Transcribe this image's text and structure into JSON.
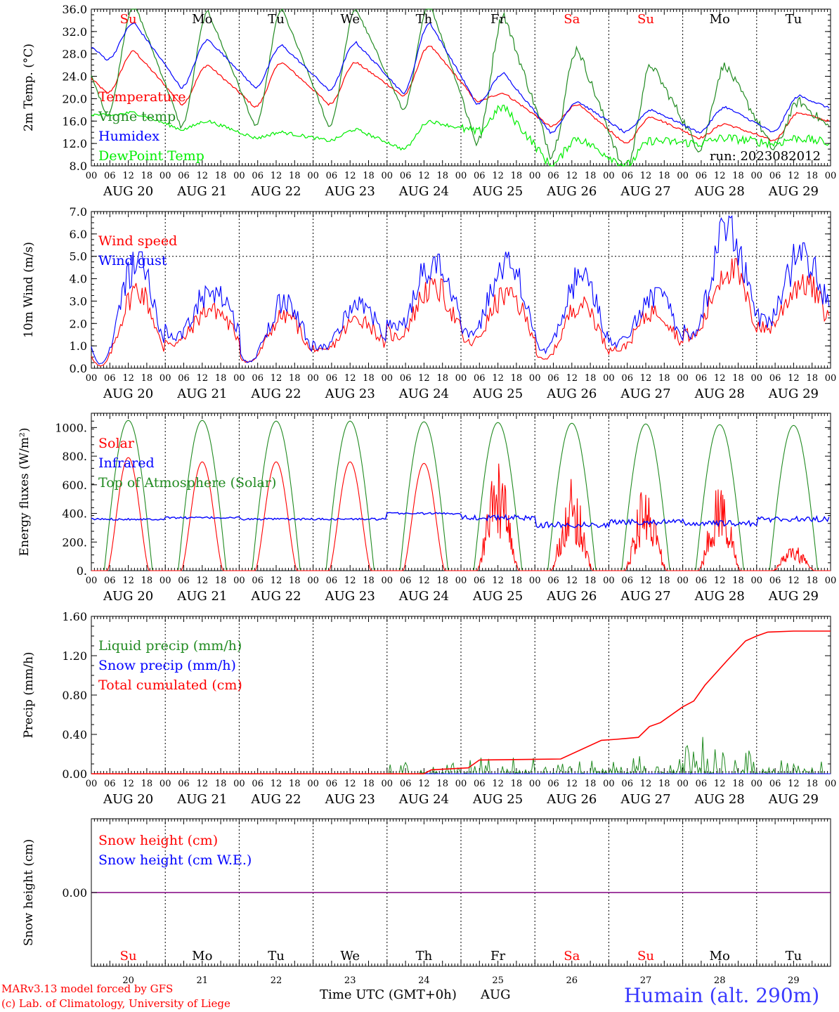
{
  "footer": {
    "model_line1": "MARv3.13 model forced by GFS",
    "model_line2": "(c) Lab. of Climatology, University of Liege",
    "xaxis_title": "Time UTC (GMT+0h)",
    "month": "AUG",
    "station": "Humain (alt. 290m)"
  },
  "colors": {
    "red": "#ff0000",
    "green": "#228b22",
    "blue": "#0000ff",
    "lightgreen": "#00ee00",
    "purple": "#800080"
  },
  "chart_data": [
    {
      "type": "line",
      "ylabel": "2m Temp. (°C)",
      "ylim": [
        8,
        36
      ],
      "yticks": [
        "8.0",
        "12.0",
        "16.0",
        "20.0",
        "24.0",
        "28.0",
        "32.0",
        "36.0"
      ],
      "x_hour_ticks": [
        "00",
        "06",
        "12",
        "18"
      ],
      "dates": [
        "AUG 20",
        "AUG 21",
        "AUG 22",
        "AUG 23",
        "AUG 24",
        "AUG 25",
        "AUG 26",
        "AUG 27",
        "AUG 28",
        "AUG 29"
      ],
      "weekdays": [
        "Su",
        "Mo",
        "Tu",
        "We",
        "Th",
        "Fr",
        "Sa",
        "Su",
        "Mo",
        "Tu"
      ],
      "weekend_flags": [
        true,
        false,
        false,
        false,
        false,
        false,
        true,
        true,
        false,
        false
      ],
      "annotation": "run: 2023082012",
      "legend": [
        "Temperature",
        "Vigne temp",
        "Humidex",
        "DewPoint Temp"
      ],
      "series": [
        {
          "name": "Temperature",
          "color": "#ff0000",
          "daily_min": [
            21,
            19,
            18.5,
            19,
            20.5,
            19.5,
            15,
            12,
            13,
            12.5
          ],
          "daily_max": [
            28.5,
            26,
            26.5,
            26.5,
            29.5,
            21,
            19,
            16.8,
            15.5,
            17.5
          ],
          "end": 15
        },
        {
          "name": "Vigne temp",
          "color": "#228b22",
          "daily_min": [
            17,
            15,
            15,
            15,
            18,
            12,
            10,
            6.5,
            11,
            11
          ],
          "daily_max": [
            37,
            35.5,
            36,
            36,
            37,
            35,
            29,
            26,
            26,
            19.5
          ],
          "end": 12
        },
        {
          "name": "Humidex",
          "color": "#0000ff",
          "daily_min": [
            27,
            22,
            22,
            21.5,
            21,
            19,
            14,
            14,
            14,
            14
          ],
          "daily_max": [
            33.5,
            30.5,
            29.5,
            30,
            33.5,
            24.5,
            19.5,
            18,
            18.5,
            20.5
          ],
          "end": 17
        },
        {
          "name": "DewPoint Temp",
          "color": "#00ee00",
          "daily_min": [
            17,
            14.5,
            13,
            12.5,
            11,
            14,
            8,
            8,
            12,
            12
          ],
          "daily_max": [
            17.5,
            16,
            14,
            14.5,
            16,
            18.5,
            13,
            12.5,
            13,
            13
          ],
          "end": 11.5
        }
      ]
    },
    {
      "type": "line",
      "ylabel": "10m Wind (m/s)",
      "ylim": [
        0,
        7
      ],
      "yticks": [
        "0.0",
        "1.0",
        "2.0",
        "3.0",
        "4.0",
        "5.0",
        "6.0",
        "7.0"
      ],
      "ref_line": 5.0,
      "legend": [
        "Wind speed",
        "Wind gust"
      ],
      "series": [
        {
          "name": "Wind speed",
          "color": "#ff0000",
          "daily_min": [
            0.1,
            1.2,
            0.3,
            0.8,
            1.5,
            1.2,
            0.4,
            0.9,
            1.5,
            1.9
          ],
          "daily_max": [
            3.8,
            2.9,
            2.6,
            2.4,
            4.0,
            3.6,
            3.2,
            2.8,
            4.9,
            4.2
          ]
        },
        {
          "name": "Wind gust",
          "color": "#0000ff",
          "daily_min": [
            0.2,
            1.5,
            0.3,
            1.0,
            1.9,
            1.5,
            0.8,
            1.2,
            1.7,
            2.2
          ],
          "daily_max": [
            5.2,
            3.8,
            3.3,
            3.2,
            5.1,
            5.2,
            4.5,
            3.6,
            6.8,
            5.6
          ]
        }
      ]
    },
    {
      "type": "line",
      "ylabel": "Energy fluxes (W/m²)",
      "ylim": [
        0,
        1100
      ],
      "yticks": [
        "0.",
        "200.",
        "400.",
        "600.",
        "800.",
        "1000."
      ],
      "legend": [
        "Solar",
        "Infrared",
        "Top of Atmosphere (Solar)"
      ],
      "series": [
        {
          "name": "Solar",
          "color": "#ff0000",
          "daily_peak": [
            790,
            760,
            760,
            760,
            750,
            750,
            650,
            600,
            620,
            180
          ]
        },
        {
          "name": "Infrared",
          "color": "#0000ff",
          "level": [
            360,
            370,
            360,
            360,
            400,
            370,
            320,
            340,
            330,
            360
          ]
        },
        {
          "name": "Top of Atmosphere (Solar)",
          "color": "#228b22",
          "daily_peak": [
            1050,
            1050,
            1045,
            1045,
            1040,
            1035,
            1030,
            1025,
            1020,
            1015
          ]
        }
      ]
    },
    {
      "type": "line",
      "ylabel": "Precip (mm/h)",
      "ylim": [
        0,
        1.6
      ],
      "yticks": [
        "0.00",
        "0.40",
        "0.80",
        "1.20",
        "1.60"
      ],
      "legend": [
        "Liquid precip (mm/h)",
        "Snow precip (mm/h)",
        "Total cumulated (cm)"
      ],
      "series": [
        {
          "name": "Liquid precip (mm/h)",
          "color": "#228b22",
          "daily_max": [
            0,
            0,
            0,
            0,
            0.12,
            0.18,
            0.15,
            0.18,
            0.38,
            0.14
          ]
        },
        {
          "name": "Snow precip (mm/h)",
          "color": "#0000ff"
        },
        {
          "name": "Total cumulated (cm)",
          "color": "#ff0000",
          "points": [
            [
              4.5,
              0
            ],
            [
              4.6,
              0.04
            ],
            [
              5.1,
              0.06
            ],
            [
              5.25,
              0.14
            ],
            [
              6.35,
              0.15
            ],
            [
              6.9,
              0.34
            ],
            [
              7.1,
              0.35
            ],
            [
              7.4,
              0.37
            ],
            [
              7.55,
              0.48
            ],
            [
              7.7,
              0.52
            ],
            [
              8.0,
              0.68
            ],
            [
              8.15,
              0.74
            ],
            [
              8.3,
              0.9
            ],
            [
              8.6,
              1.15
            ],
            [
              8.85,
              1.35
            ],
            [
              9.0,
              1.4
            ],
            [
              9.15,
              1.44
            ],
            [
              9.5,
              1.45
            ],
            [
              10,
              1.45
            ]
          ]
        }
      ]
    },
    {
      "type": "line",
      "ylabel": "Snow height (cm)",
      "yticks": [
        "0.00"
      ],
      "legend": [
        "Snow height (cm)",
        "Snow height (cm W.E.)"
      ],
      "day_numbers": [
        "20",
        "21",
        "22",
        "23",
        "24",
        "25",
        "26",
        "27",
        "28",
        "29"
      ],
      "series": [
        {
          "name": "Snow height (cm)",
          "color": "#ff0000",
          "value": 0
        },
        {
          "name": "Snow height (cm W.E.)",
          "color": "#0000ff",
          "value": 0
        }
      ]
    }
  ]
}
